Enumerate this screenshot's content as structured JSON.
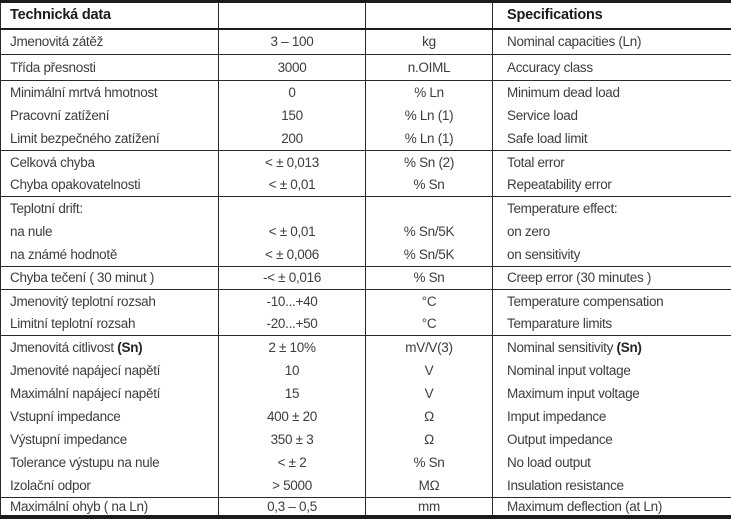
{
  "table": {
    "header": {
      "cz_title": "Technická data",
      "en_title": "Specifications"
    },
    "columns": [
      "czech-label",
      "value",
      "unit",
      "english-label"
    ],
    "rows": [
      {
        "cz": "Jmenovitá zátěž",
        "value": "3 – 100",
        "unit": "kg",
        "en": "Nominal capacities (Ln)"
      },
      {
        "cz": "Třída přesnosti",
        "value": "3000",
        "unit": "n.OIML",
        "en": "Accuracy class",
        "rule_above": true
      },
      {
        "cz": "Minimální mrtvá hmotnost",
        "value": "0",
        "unit": "% Ln",
        "en": "Minimum dead load",
        "rule_above": true
      },
      {
        "cz": "Pracovní zatížení",
        "value": "150",
        "unit": "% Ln (1)",
        "en": "Service load"
      },
      {
        "cz": "Limit bezpečného zatížení",
        "value": "200",
        "unit": "% Ln (1)",
        "en": "Safe load limit"
      },
      {
        "cz": "Celková chyba",
        "value": "< ± 0,013",
        "unit": "% Sn (2)",
        "en": "Total error",
        "rule_above": true
      },
      {
        "cz": "Chyba opakovatelnosti",
        "value": "< ± 0,01",
        "unit": "% Sn",
        "en": "Repeatability error"
      },
      {
        "cz": "Teplotní drift:",
        "value": "",
        "unit": "",
        "en": "Temperature effect:",
        "rule_above": true
      },
      {
        "cz": "na nule",
        "value": "< ± 0,01",
        "unit": "% Sn/5K",
        "en": "on zero"
      },
      {
        "cz": "na známé hodnotě",
        "value": "< ± 0,006",
        "unit": "% Sn/5K",
        "en": "on sensitivity"
      },
      {
        "cz": "Chyba tečení ( 30 minut )",
        "value": "-< ± 0,016",
        "unit": "% Sn",
        "en": "Creep error (30 minutes )",
        "rule_above": true
      },
      {
        "cz": "Jmenovitý teplotní rozsah",
        "value": "-10...+40",
        "unit": "°C",
        "en": "Temperature compensation",
        "rule_above": true
      },
      {
        "cz": "Limitní teplotní rozsah",
        "value": "-20...+50",
        "unit": "°C",
        "en": "Temparature limits"
      },
      {
        "cz": "Jmenovitá citlivost ",
        "cz_bold": "(Sn)",
        "value": "2 ± 10%",
        "unit": "mV/V(3)",
        "en": "Nominal sensitivity ",
        "en_bold": "(Sn)",
        "rule_above": true
      },
      {
        "cz": "Jmenovité napájecí napětí",
        "value": "10",
        "unit": "V",
        "en": "Nominal input voltage"
      },
      {
        "cz": "Maximální napájecí napětí",
        "value": "15",
        "unit": "V",
        "en": "Maximum input voltage"
      },
      {
        "cz": "Vstupní impedance",
        "value": "400 ± 20",
        "unit": "Ω",
        "en": "Imput impedance"
      },
      {
        "cz": "Výstupní impedance",
        "value": "350 ± 3",
        "unit": "Ω",
        "en": "Output impedance"
      },
      {
        "cz": "Tolerance výstupu na nule",
        "value": "< ± 2",
        "unit": "% Sn",
        "en": "No load output"
      },
      {
        "cz": "Izolační odpor",
        "value": "> 5000",
        "unit": "MΩ",
        "en": "Insulation resistance"
      },
      {
        "cz": "Maximální ohyb ( na Ln)",
        "value": "0,3 – 0,5",
        "unit": "mm",
        "en": "Maximum deflection (at Ln)",
        "rule_above": true
      }
    ],
    "colors": {
      "border": "#2b292c",
      "text": "#3e3c3f",
      "header_text": "#1c1a1d",
      "background": "#ffffff"
    }
  }
}
